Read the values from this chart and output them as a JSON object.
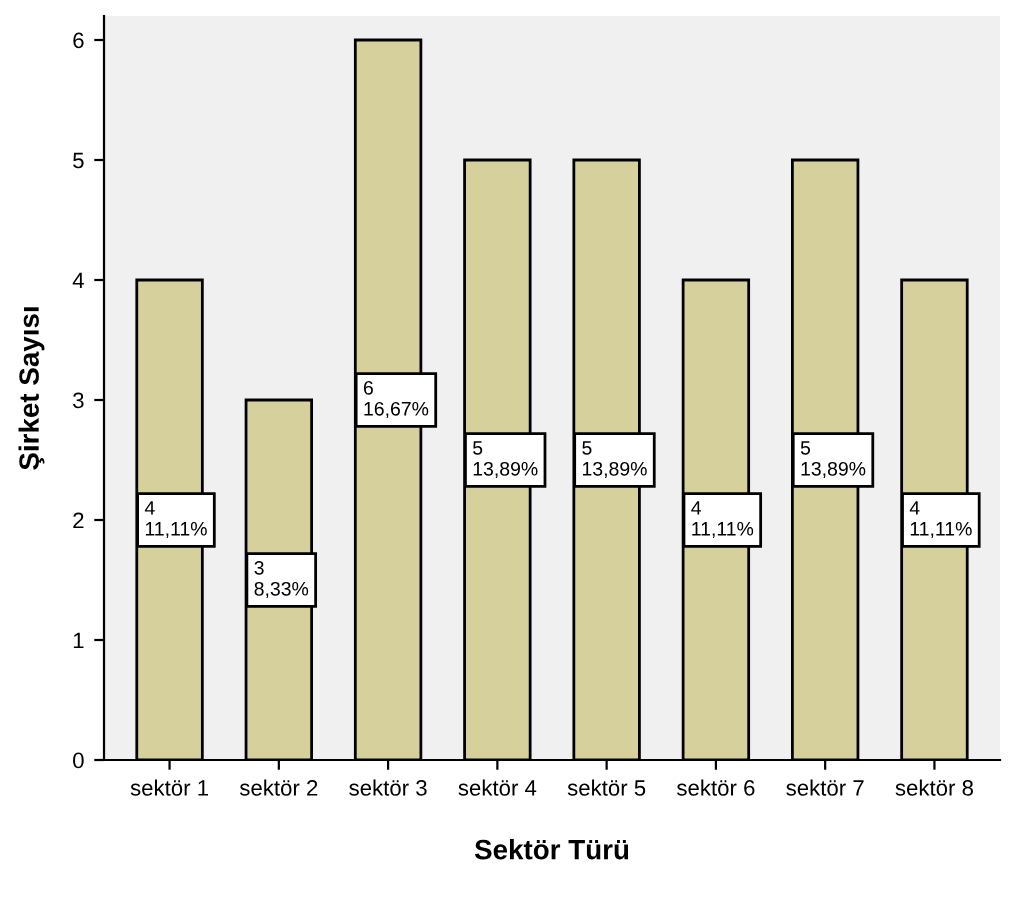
{
  "chart_data": {
    "type": "bar",
    "xlabel": "Sektör Türü",
    "ylabel": "Şirket Sayısı",
    "categories": [
      "sektör 1",
      "sektör 2",
      "sektör 3",
      "sektör 4",
      "sektör 5",
      "sektör 6",
      "sektör 7",
      "sektör 8"
    ],
    "values": [
      4,
      3,
      6,
      5,
      5,
      4,
      5,
      4
    ],
    "value_labels": [
      "4\n11,11%",
      "3\n8,33%",
      "6\n16,67%",
      "5\n13,89%",
      "5\n13,89%",
      "4\n11,11%",
      "5\n13,89%",
      "4\n11,11%"
    ],
    "color": "#d6d19c",
    "ylim": [
      0,
      6.2
    ],
    "yticks": [
      0,
      1,
      2,
      3,
      4,
      5,
      6
    ],
    "grid": false,
    "legend": false
  }
}
